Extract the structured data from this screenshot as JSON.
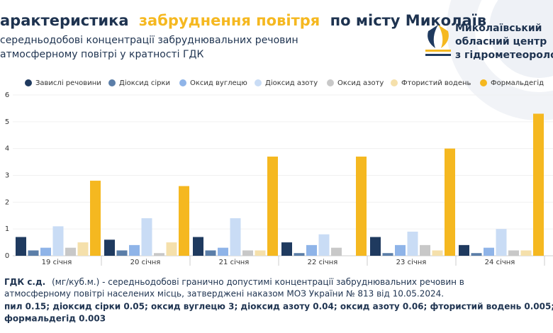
{
  "header": {
    "title_parts": [
      "арактеристика",
      "забруднення повітря",
      "по місту Миколаїв"
    ],
    "subtitle_lines": [
      "середньодобові концентрації забруднювальних речовин",
      "атмосферному повітрі у кратності ГДК"
    ],
    "logo_lines": [
      "Миколаївський",
      "обласний центр",
      "з гідрометеороло"
    ]
  },
  "chart_data": {
    "type": "bar",
    "categories": [
      "19 січня",
      "20 січня",
      "21 січня",
      "22 січня",
      "23 січня",
      "24 січня"
    ],
    "series": [
      {
        "name": "Завислі речовини",
        "color": "#1f3a5f",
        "values": [
          0.7,
          0.6,
          0.7,
          0.5,
          0.7,
          0.4
        ]
      },
      {
        "name": "Діоксид сірки",
        "color": "#5b7ea8",
        "values": [
          0.2,
          0.2,
          0.2,
          0.1,
          0.1,
          0.1
        ]
      },
      {
        "name": "Оксид вуглецю",
        "color": "#8fb4e8",
        "values": [
          0.3,
          0.4,
          0.3,
          0.4,
          0.4,
          0.3
        ]
      },
      {
        "name": "Діоксид азоту",
        "color": "#c9dcf5",
        "values": [
          1.1,
          1.4,
          1.4,
          0.8,
          0.9,
          1.0
        ]
      },
      {
        "name": "Оксид азоту",
        "color": "#c8c8c8",
        "values": [
          0.3,
          0.1,
          0.2,
          0.3,
          0.4,
          0.2
        ]
      },
      {
        "name": "Фтористий водень",
        "color": "#f5e0ab",
        "values": [
          0.5,
          0.5,
          0.2,
          0,
          0.2,
          0.2
        ]
      },
      {
        "name": "Формальдегід",
        "color": "#f5b820",
        "values": [
          2.8,
          2.6,
          3.7,
          3.7,
          4.0,
          5.3
        ]
      }
    ],
    "ylim": [
      0,
      6
    ],
    "yticks": [
      0,
      1,
      2,
      3,
      4,
      5,
      6
    ],
    "grid": true
  },
  "note": {
    "lead": "ГДК с.д.",
    "lines": [
      "(мг/куб.м.) - середньодобові гранично допустимі концентрації забруднювальних речовин в",
      "атмосферному повітрі населених місць, затверджені наказом МОЗ України № 813 від 10.05.2024.",
      "пил 0.15; діоксид сірки 0.05; оксид вуглецю 3; діоксид азоту 0.04; оксид азоту 0.06; фтористий водень 0.005;",
      "формальдегід 0.003"
    ]
  }
}
